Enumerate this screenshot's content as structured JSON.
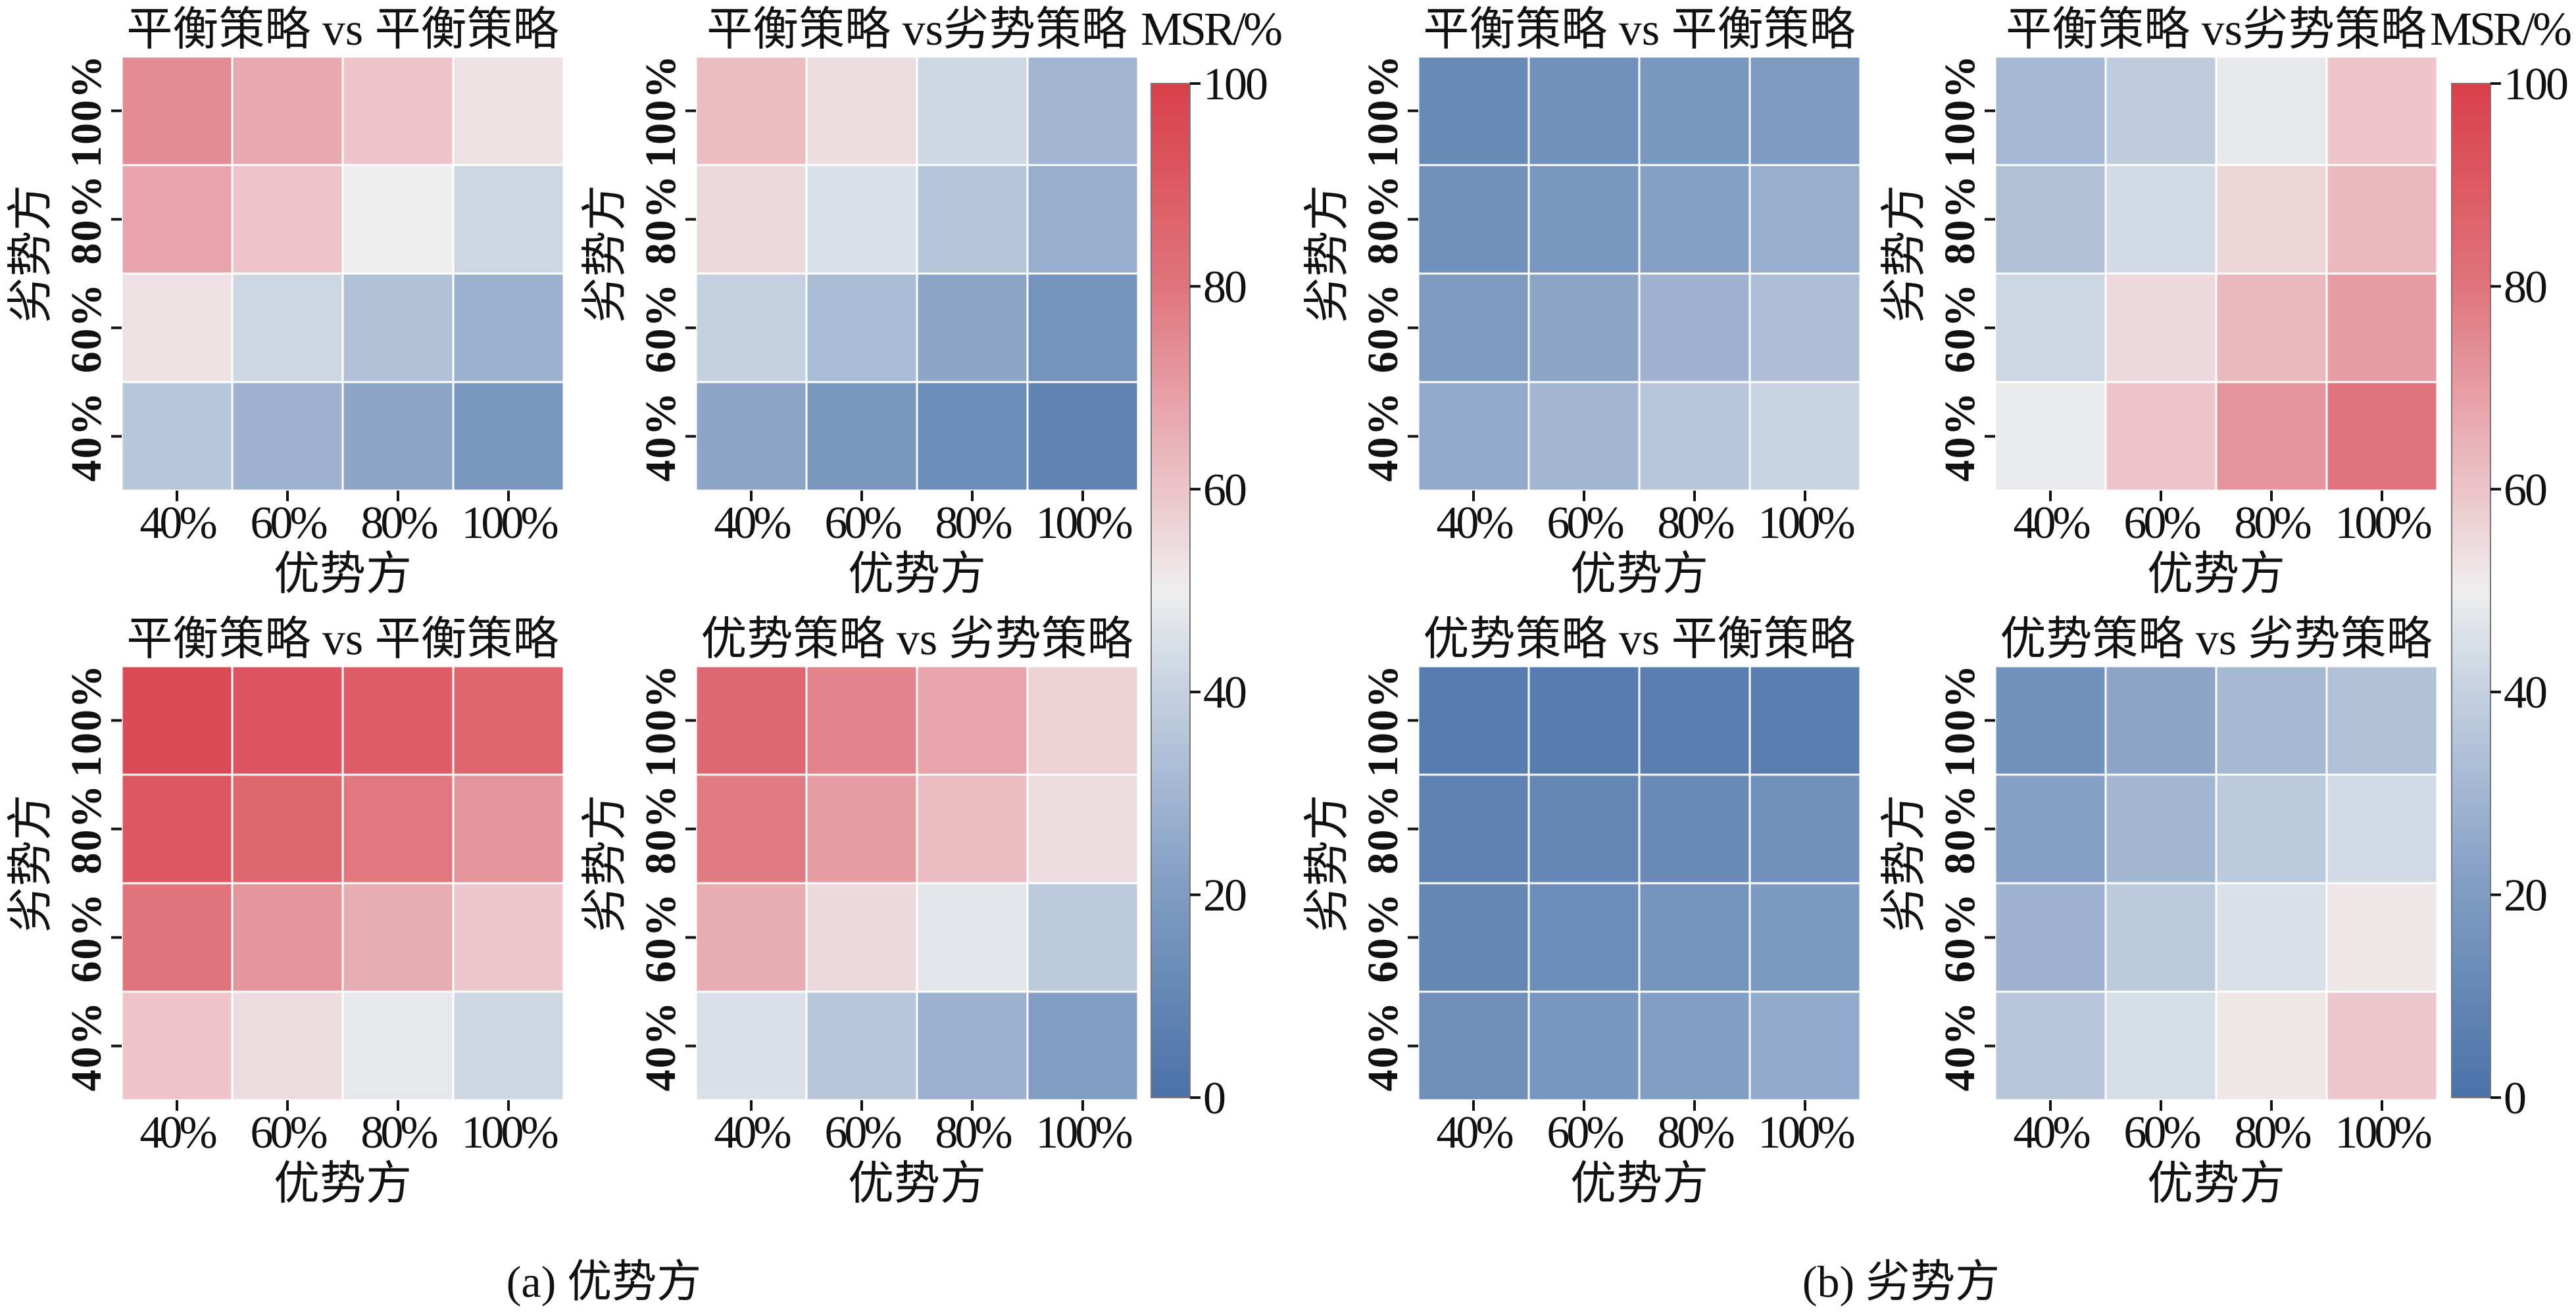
{
  "chart_data": [
    {
      "type": "heatmap",
      "group": "a",
      "title": "平衡策略 vs 平衡策略",
      "xlabel": "优势方",
      "ylabel": "劣势方",
      "x_categories": [
        "40%",
        "60%",
        "80%",
        "100%"
      ],
      "y_categories": [
        "100%",
        "80%",
        "60%",
        "40%"
      ],
      "values": [
        [
          74,
          67,
          60,
          53
        ],
        [
          68,
          60,
          50,
          42
        ],
        [
          53,
          42,
          34,
          28
        ],
        [
          36,
          29,
          24,
          18
        ]
      ]
    },
    {
      "type": "heatmap",
      "group": "a",
      "title": "平衡策略 vs劣势策略",
      "xlabel": "优势方",
      "ylabel": "劣势方",
      "x_categories": [
        "40%",
        "60%",
        "80%",
        "100%"
      ],
      "y_categories": [
        "100%",
        "80%",
        "60%",
        "40%"
      ],
      "values": [
        [
          62,
          54,
          42,
          30
        ],
        [
          55,
          45,
          35,
          27
        ],
        [
          40,
          32,
          24,
          16
        ],
        [
          24,
          18,
          13,
          9
        ]
      ]
    },
    {
      "type": "heatmap",
      "group": "a",
      "title": "平衡策略 vs 平衡策略",
      "xlabel": "优势方",
      "ylabel": "劣势方",
      "x_categories": [
        "40%",
        "60%",
        "80%",
        "100%"
      ],
      "y_categories": [
        "100%",
        "80%",
        "60%",
        "40%"
      ],
      "values": [
        [
          96,
          92,
          89,
          86
        ],
        [
          91,
          85,
          79,
          72
        ],
        [
          80,
          72,
          66,
          59
        ],
        [
          60,
          54,
          48,
          42
        ]
      ]
    },
    {
      "type": "heatmap",
      "group": "a",
      "title": "优势策略 vs 劣势策略",
      "xlabel": "优势方",
      "ylabel": "劣势方",
      "x_categories": [
        "40%",
        "60%",
        "80%",
        "100%"
      ],
      "y_categories": [
        "100%",
        "80%",
        "60%",
        "40%"
      ],
      "values": [
        [
          84,
          76,
          68,
          57
        ],
        [
          78,
          70,
          62,
          54
        ],
        [
          66,
          55,
          47,
          37
        ],
        [
          45,
          36,
          28,
          21
        ]
      ]
    },
    {
      "type": "heatmap",
      "group": "b",
      "title": "平衡策略 vs 平衡策略",
      "xlabel": "优势方",
      "ylabel": "劣势方",
      "x_categories": [
        "40%",
        "60%",
        "80%",
        "100%"
      ],
      "y_categories": [
        "100%",
        "80%",
        "60%",
        "40%"
      ],
      "values": [
        [
          12,
          15,
          18,
          20
        ],
        [
          15,
          18,
          22,
          27
        ],
        [
          20,
          24,
          29,
          33
        ],
        [
          25,
          30,
          36,
          41
        ]
      ]
    },
    {
      "type": "heatmap",
      "group": "b",
      "title": "平衡策略 vs劣势策略",
      "xlabel": "优势方",
      "ylabel": "劣势方",
      "x_categories": [
        "40%",
        "60%",
        "80%",
        "100%"
      ],
      "y_categories": [
        "100%",
        "80%",
        "60%",
        "40%"
      ],
      "values": [
        [
          31,
          38,
          48,
          60
        ],
        [
          34,
          43,
          56,
          63
        ],
        [
          42,
          55,
          63,
          70
        ],
        [
          49,
          60,
          72,
          80
        ]
      ]
    },
    {
      "type": "heatmap",
      "group": "b",
      "title": "优势策略 vs 平衡策略",
      "xlabel": "优势方",
      "ylabel": "劣势方",
      "x_categories": [
        "40%",
        "60%",
        "80%",
        "100%"
      ],
      "y_categories": [
        "100%",
        "80%",
        "60%",
        "40%"
      ],
      "values": [
        [
          5,
          5,
          6,
          6
        ],
        [
          8,
          10,
          12,
          15
        ],
        [
          10,
          13,
          16,
          19
        ],
        [
          14,
          17,
          21,
          25
        ]
      ]
    },
    {
      "type": "heatmap",
      "group": "b",
      "title": "优势策略 vs 劣势策略",
      "xlabel": "优势方",
      "ylabel": "劣势方",
      "x_categories": [
        "40%",
        "60%",
        "80%",
        "100%"
      ],
      "y_categories": [
        "100%",
        "80%",
        "60%",
        "40%"
      ],
      "values": [
        [
          15,
          24,
          31,
          34
        ],
        [
          22,
          30,
          37,
          43
        ],
        [
          29,
          37,
          45,
          52
        ],
        [
          36,
          44,
          52,
          59
        ]
      ]
    }
  ],
  "colorbar": {
    "title": "MSR/%",
    "range": [
      0,
      100
    ],
    "ticks": [
      "0",
      "20",
      "40",
      "60",
      "80",
      "100"
    ],
    "tick_values": [
      0,
      20,
      40,
      60,
      80,
      100
    ],
    "colors": {
      "low": "#4a72a8",
      "mid": "#eeeeee",
      "high": "#d93f4b"
    }
  },
  "captions": {
    "a": "(a) 优势方",
    "b": "(b) 劣势方"
  }
}
